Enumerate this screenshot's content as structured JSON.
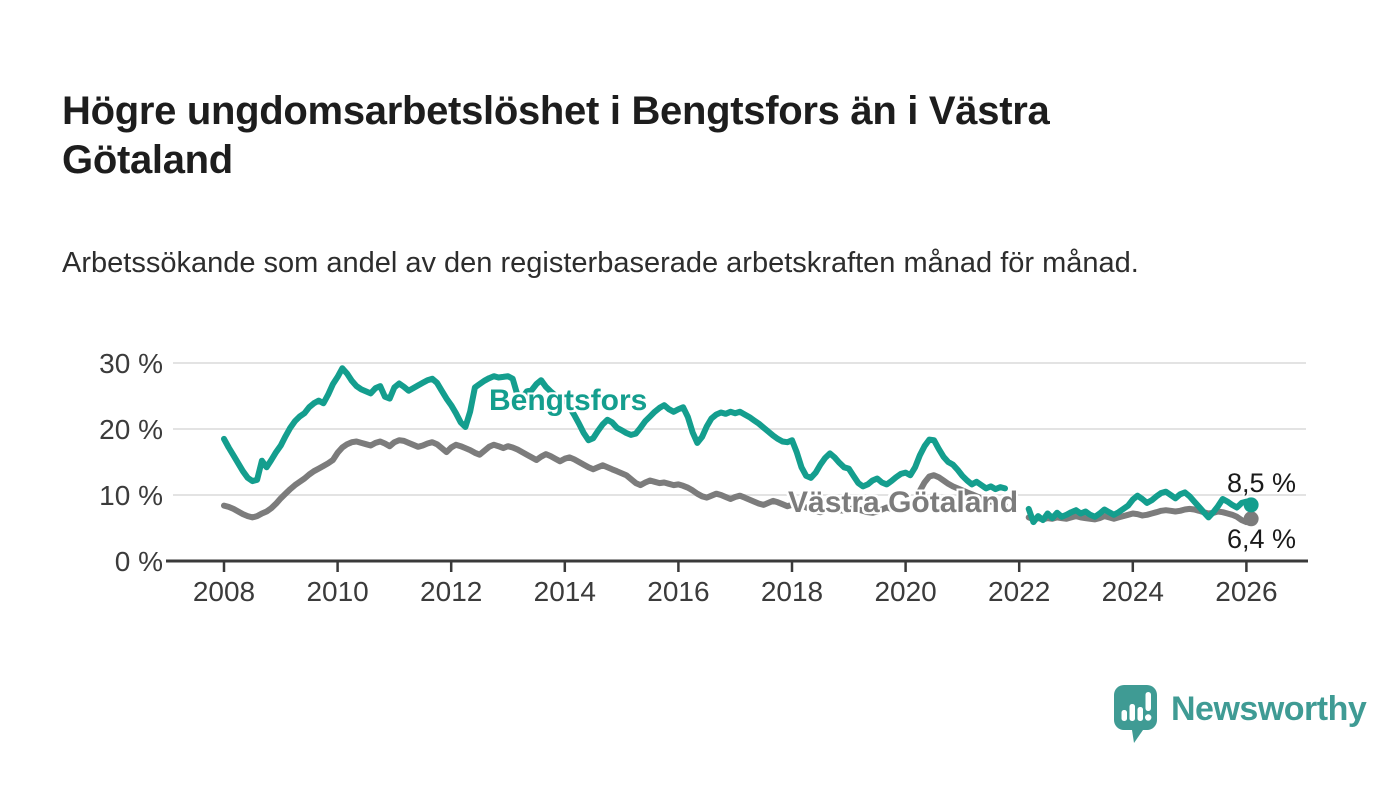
{
  "page": {
    "background": "#ffffff"
  },
  "header": {
    "title": "Högre ungdomsarbetslöshet i Bengtsfors än i Västra Götaland",
    "subtitle": "Arbetssökande som andel av den registerbaserade arbetskraften månad för månad."
  },
  "chart_data": {
    "type": "line",
    "frequency": "monthly",
    "x_start": "2008-01",
    "x_end": "2026-02",
    "x_ticks": [
      2008,
      2010,
      2012,
      2014,
      2016,
      2018,
      2020,
      2022,
      2024,
      2026
    ],
    "y_ticks": [
      {
        "value": 0,
        "label": "0 %"
      },
      {
        "value": 10,
        "label": "10 %"
      },
      {
        "value": 20,
        "label": "20 %"
      },
      {
        "value": 30,
        "label": "30 %"
      }
    ],
    "ylim": [
      0,
      31
    ],
    "grid": "horizontal",
    "note": "Gap in both series Nov 2021 - Feb 2022 (null values)",
    "colors": {
      "axis": "#3a3a3a",
      "gridline": "#e3e3e3",
      "tick_label": "#3b3b3b"
    },
    "series": [
      {
        "name": "Västra Götaland",
        "color": "#7c7c7c",
        "end_value": 6.4,
        "end_label": "6,4 %",
        "values": [
          8.4,
          8.2,
          7.9,
          7.5,
          7.1,
          6.8,
          6.6,
          6.8,
          7.2,
          7.5,
          8.0,
          8.7,
          9.5,
          10.2,
          10.9,
          11.5,
          12.0,
          12.5,
          13.1,
          13.6,
          14.0,
          14.4,
          14.8,
          15.3,
          16.4,
          17.2,
          17.7,
          18.0,
          18.1,
          17.9,
          17.7,
          17.5,
          17.9,
          18.1,
          17.8,
          17.4,
          18.0,
          18.3,
          18.2,
          17.9,
          17.6,
          17.3,
          17.5,
          17.8,
          18.0,
          17.7,
          17.1,
          16.5,
          17.2,
          17.6,
          17.4,
          17.1,
          16.8,
          16.4,
          16.1,
          16.7,
          17.3,
          17.6,
          17.4,
          17.1,
          17.4,
          17.2,
          16.9,
          16.5,
          16.1,
          15.7,
          15.3,
          15.8,
          16.2,
          15.9,
          15.5,
          15.1,
          15.5,
          15.7,
          15.4,
          15.0,
          14.6,
          14.2,
          13.9,
          14.2,
          14.5,
          14.2,
          13.9,
          13.6,
          13.3,
          13.0,
          12.4,
          11.8,
          11.5,
          11.9,
          12.2,
          12.0,
          11.8,
          11.9,
          11.7,
          11.5,
          11.6,
          11.4,
          11.1,
          10.7,
          10.2,
          9.8,
          9.6,
          9.9,
          10.2,
          10.0,
          9.7,
          9.4,
          9.7,
          9.9,
          9.6,
          9.3,
          9.0,
          8.7,
          8.5,
          8.8,
          9.1,
          8.9,
          8.6,
          8.3,
          8.5,
          8.7,
          8.4,
          8.1,
          7.9,
          7.6,
          7.4,
          7.7,
          8.0,
          7.9,
          7.7,
          7.6,
          7.8,
          8.0,
          7.8,
          7.6,
          7.4,
          7.3,
          7.5,
          7.8,
          8.1,
          7.9,
          7.8,
          7.9,
          8.2,
          8.4,
          9.1,
          10.6,
          11.9,
          12.8,
          13.0,
          12.7,
          12.2,
          11.7,
          11.3,
          11.0,
          10.7,
          10.4,
          10.1,
          9.8,
          9.5,
          9.2,
          9.0,
          8.8,
          8.6,
          8.5,
          null,
          null,
          null,
          null,
          6.6,
          6.3,
          6.5,
          6.3,
          6.5,
          6.4,
          6.6,
          6.5,
          6.4,
          6.6,
          6.8,
          6.6,
          6.5,
          6.4,
          6.3,
          6.5,
          6.8,
          6.6,
          6.4,
          6.6,
          6.8,
          7.0,
          7.2,
          7.1,
          6.9,
          7.0,
          7.2,
          7.4,
          7.6,
          7.7,
          7.6,
          7.5,
          7.6,
          7.8,
          7.9,
          7.8,
          7.6,
          7.4,
          7.2,
          7.3,
          7.5,
          7.4,
          7.2,
          7.0,
          6.7,
          6.2,
          5.9,
          6.4
        ]
      },
      {
        "name": "Bengtsfors",
        "color": "#149e8e",
        "end_value": 8.5,
        "end_label": "8,5 %",
        "values": [
          18.5,
          17.2,
          16.0,
          14.8,
          13.6,
          12.6,
          12.1,
          12.3,
          15.2,
          14.2,
          15.3,
          16.5,
          17.5,
          18.9,
          20.2,
          21.2,
          21.9,
          22.4,
          23.3,
          23.9,
          24.3,
          23.9,
          25.2,
          26.8,
          27.9,
          29.2,
          28.4,
          27.3,
          26.5,
          26.0,
          25.7,
          25.4,
          26.2,
          26.5,
          24.9,
          24.6,
          26.3,
          26.9,
          26.4,
          25.8,
          26.2,
          26.6,
          27.0,
          27.4,
          27.6,
          27.0,
          25.8,
          24.6,
          23.6,
          22.4,
          21.0,
          20.3,
          22.6,
          26.3,
          26.8,
          27.3,
          27.7,
          28.0,
          27.8,
          27.9,
          28.0,
          27.6,
          25.1,
          24.7,
          25.7,
          25.9,
          26.8,
          27.4,
          26.4,
          25.7,
          25.1,
          24.8,
          24.5,
          23.3,
          22.1,
          20.8,
          19.4,
          18.3,
          18.6,
          19.7,
          20.7,
          21.4,
          21.0,
          20.2,
          19.8,
          19.4,
          19.1,
          19.3,
          20.2,
          21.2,
          21.9,
          22.6,
          23.2,
          23.6,
          23.0,
          22.6,
          23.0,
          23.3,
          21.8,
          19.5,
          17.9,
          18.8,
          20.4,
          21.6,
          22.2,
          22.5,
          22.3,
          22.6,
          22.4,
          22.6,
          22.2,
          21.8,
          21.3,
          20.8,
          20.2,
          19.6,
          19.0,
          18.5,
          18.1,
          18.0,
          18.3,
          16.5,
          14.2,
          12.9,
          12.6,
          13.4,
          14.6,
          15.6,
          16.3,
          15.7,
          14.9,
          14.2,
          14.0,
          12.9,
          11.8,
          11.3,
          11.6,
          12.2,
          12.5,
          11.9,
          11.6,
          12.1,
          12.7,
          13.2,
          13.4,
          13.0,
          14.2,
          16.0,
          17.4,
          18.4,
          18.3,
          17.0,
          15.8,
          15.0,
          14.6,
          13.8,
          12.9,
          12.2,
          11.6,
          12.0,
          11.5,
          11.0,
          11.3,
          10.9,
          11.2,
          11.0,
          null,
          null,
          null,
          null,
          7.9,
          5.9,
          6.8,
          6.2,
          7.2,
          6.5,
          7.3,
          6.7,
          7.0,
          7.4,
          7.7,
          7.2,
          7.5,
          7.0,
          6.7,
          7.2,
          7.8,
          7.4,
          7.0,
          7.4,
          7.9,
          8.4,
          9.3,
          9.9,
          9.4,
          8.8,
          9.2,
          9.8,
          10.3,
          10.5,
          10.0,
          9.5,
          10.1,
          10.4,
          9.8,
          9.0,
          8.2,
          7.4,
          6.6,
          7.4,
          8.3,
          9.4,
          9.0,
          8.5,
          8.1,
          8.8,
          9.0,
          8.5
        ]
      }
    ]
  },
  "annotations": {
    "bengtsfors_label": "Bengtsfors",
    "vastra_gotaland_label": "Västra Götaland"
  },
  "branding": {
    "logo_text": "Newsworthy",
    "logo_color": "#3f9b94"
  }
}
